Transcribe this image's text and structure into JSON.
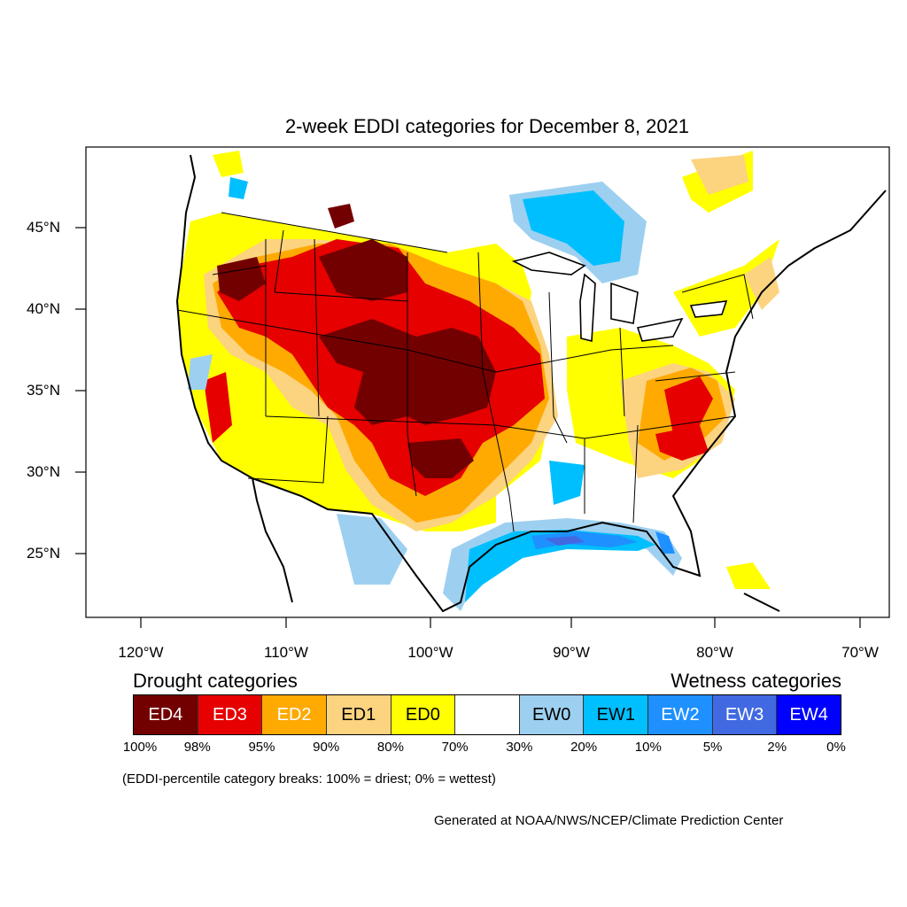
{
  "title": "2-week EDDI categories for December 8, 2021",
  "lat_labels": [
    "45°N",
    "40°N",
    "35°N",
    "30°N",
    "25°N"
  ],
  "lon_labels": [
    "120°W",
    "110°W",
    "100°W",
    "90°W",
    "80°W",
    "70°W"
  ],
  "legend": {
    "drought_heading": "Drought categories",
    "wetness_heading": "Wetness categories",
    "categories": [
      {
        "label": "ED4",
        "color": "#730000",
        "text_color": "#ffffff"
      },
      {
        "label": "ED3",
        "color": "#e60000",
        "text_color": "#ffffff"
      },
      {
        "label": "ED2",
        "color": "#ffaa00",
        "text_color": "#ffffff"
      },
      {
        "label": "ED1",
        "color": "#fcd37f",
        "text_color": "#000000"
      },
      {
        "label": "ED0",
        "color": "#ffff00",
        "text_color": "#000000"
      },
      {
        "label": "",
        "color": "#ffffff",
        "text_color": "#000000"
      },
      {
        "label": "EW0",
        "color": "#9dd0f0",
        "text_color": "#000000"
      },
      {
        "label": "EW1",
        "color": "#00bfff",
        "text_color": "#000000"
      },
      {
        "label": "EW2",
        "color": "#1e90ff",
        "text_color": "#ffffff"
      },
      {
        "label": "EW3",
        "color": "#4169e1",
        "text_color": "#ffffff"
      },
      {
        "label": "EW4",
        "color": "#0000ff",
        "text_color": "#ffffff"
      }
    ],
    "percentiles": [
      "100%",
      "98%",
      "95%",
      "90%",
      "80%",
      "70%",
      "30%",
      "20%",
      "10%",
      "5%",
      "2%",
      "0%"
    ]
  },
  "note": "(EDDI-percentile category breaks: 100% = driest; 0% = wettest)",
  "credit": "Generated at NOAA/NWS/NCEP/Climate Prediction Center"
}
